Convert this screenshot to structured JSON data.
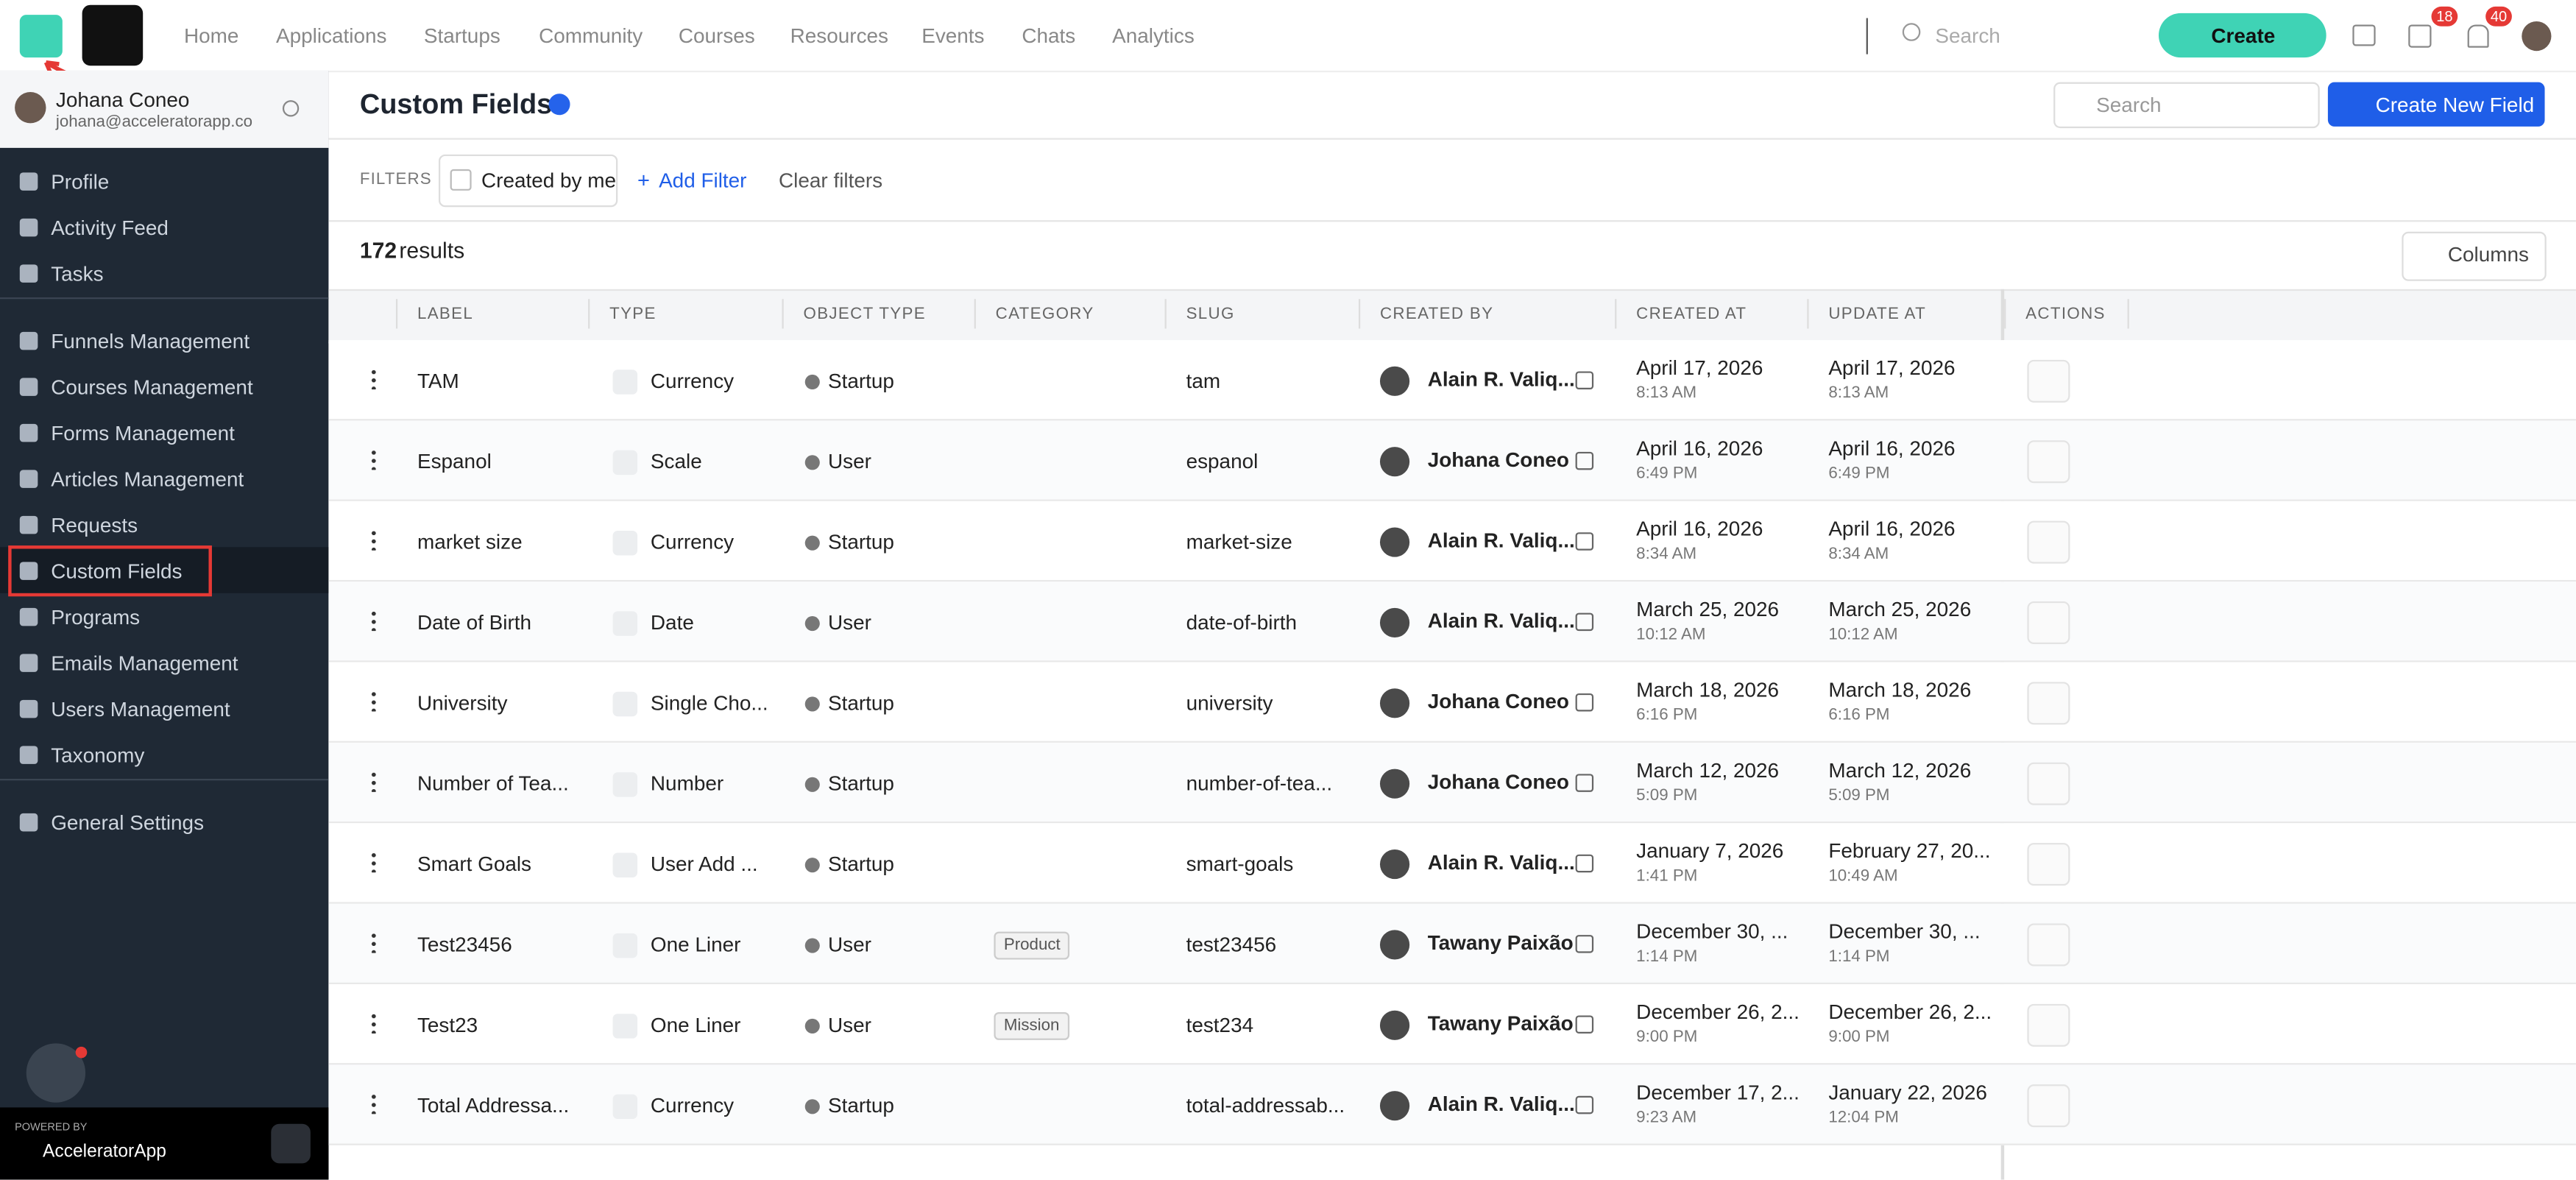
{
  "nav": {
    "items": [
      "Home",
      "Applications",
      "Startups",
      "Community",
      "Courses",
      "Resources",
      "Events",
      "Chats",
      "Analytics"
    ],
    "search": "Search",
    "create": "Create",
    "badges": [
      "18",
      "40"
    ]
  },
  "user": {
    "name": "Johana Coneo",
    "email": "johana@acceleratorapp.co"
  },
  "sidebar": {
    "groups": [
      [
        "Profile",
        "Activity Feed",
        "Tasks"
      ],
      [
        "Funnels Management",
        "Courses Management",
        "Forms Management",
        "Articles Management",
        "Requests",
        "Custom Fields",
        "Programs",
        "Emails Management",
        "Users Management",
        "Taxonomy"
      ],
      [
        "General Settings"
      ]
    ]
  },
  "powered": {
    "label": "POWERED BY",
    "brand": "AcceleratorApp"
  },
  "page": {
    "title": "Custom Fields",
    "search": "Search",
    "button": "Create New Field",
    "filters_label": "FILTERS",
    "filter": "Created by me",
    "add_filter": "Add Filter",
    "clear": "Clear filters",
    "count": 172,
    "results": "results",
    "columns_button": "Columns"
  },
  "table": {
    "columns": [
      "LABEL",
      "TYPE",
      "OBJECT TYPE",
      "CATEGORY",
      "SLUG",
      "CREATED BY",
      "CREATED AT",
      "UPDATE AT",
      "ACTIONS"
    ],
    "rows": [
      {
        "label": "TAM",
        "type": "Currency",
        "object_type": "Startup",
        "category": null,
        "slug": "tam",
        "created_by": "Alain R. Valiq...",
        "created_date": "April 17, 2026",
        "created_time": "8:13 AM",
        "updated_date": "April 17, 2026",
        "updated_time": "8:13 AM"
      },
      {
        "label": "Espanol",
        "type": "Scale",
        "object_type": "User",
        "category": null,
        "slug": "espanol",
        "created_by": "Johana Coneo",
        "created_date": "April 16, 2026",
        "created_time": "6:49 PM",
        "updated_date": "April 16, 2026",
        "updated_time": "6:49 PM"
      },
      {
        "label": "market size",
        "type": "Currency",
        "object_type": "Startup",
        "category": null,
        "slug": "market-size",
        "created_by": "Alain R. Valiq...",
        "created_date": "April 16, 2026",
        "created_time": "8:34 AM",
        "updated_date": "April 16, 2026",
        "updated_time": "8:34 AM"
      },
      {
        "label": "Date of Birth",
        "type": "Date",
        "object_type": "User",
        "category": null,
        "slug": "date-of-birth",
        "created_by": "Alain R. Valiq...",
        "created_date": "March 25, 2026",
        "created_time": "10:12 AM",
        "updated_date": "March 25, 2026",
        "updated_time": "10:12 AM"
      },
      {
        "label": "University",
        "type": "Single Cho...",
        "object_type": "Startup",
        "category": null,
        "slug": "university",
        "created_by": "Johana Coneo",
        "created_date": "March 18, 2026",
        "created_time": "6:16 PM",
        "updated_date": "March 18, 2026",
        "updated_time": "6:16 PM"
      },
      {
        "label": "Number of Tea...",
        "type": "Number",
        "object_type": "Startup",
        "category": null,
        "slug": "number-of-tea...",
        "created_by": "Johana Coneo",
        "created_date": "March 12, 2026",
        "created_time": "5:09 PM",
        "updated_date": "March 12, 2026",
        "updated_time": "5:09 PM"
      },
      {
        "label": "Smart Goals",
        "type": "User Add ...",
        "object_type": "Startup",
        "category": null,
        "slug": "smart-goals",
        "created_by": "Alain R. Valiq...",
        "created_date": "January 7, 2026",
        "created_time": "1:41 PM",
        "updated_date": "February 27, 20...",
        "updated_time": "10:49 AM"
      },
      {
        "label": "Test23456",
        "type": "One Liner",
        "object_type": "User",
        "category": "Product",
        "slug": "test23456",
        "created_by": "Tawany Paixão",
        "created_date": "December 30, ...",
        "created_time": "1:14 PM",
        "updated_date": "December 30, ...",
        "updated_time": "1:14 PM"
      },
      {
        "label": "Test23",
        "type": "One Liner",
        "object_type": "User",
        "category": "Mission",
        "slug": "test234",
        "created_by": "Tawany Paixão",
        "created_date": "December 26, 2...",
        "created_time": "9:00 PM",
        "updated_date": "December 26, 2...",
        "updated_time": "9:00 PM"
      },
      {
        "label": "Total Addressa...",
        "type": "Currency",
        "object_type": "Startup",
        "category": null,
        "slug": "total-addressab...",
        "created_by": "Alain R. Valiq...",
        "created_date": "December 17, 2...",
        "created_time": "9:23 AM",
        "updated_date": "January 22, 2026",
        "updated_time": "12:04 PM"
      }
    ]
  }
}
